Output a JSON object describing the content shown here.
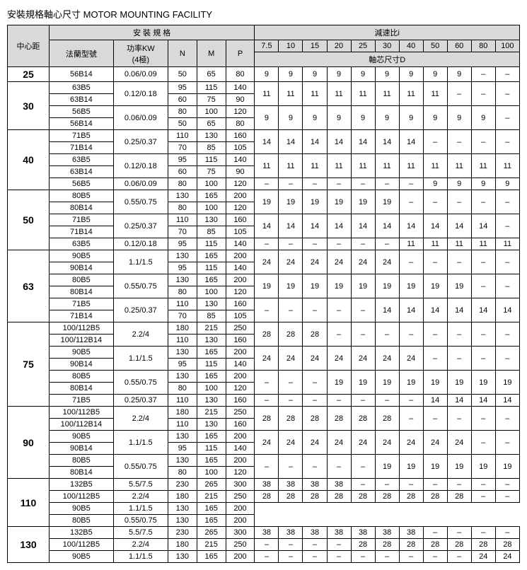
{
  "title": "安裝規格軸心尺寸 MOTOR MOUNTING FACILITY",
  "headers": {
    "center_dist": "中心距",
    "mount_spec": "安 裝 規 格",
    "ratio": "減速比i",
    "flange": "法蘭型號",
    "power": "功率KW\n(4極)",
    "N": "N",
    "M": "M",
    "P": "P",
    "shaft": "軸芯尺寸D",
    "ratios": [
      "7.5",
      "10",
      "15",
      "20",
      "25",
      "30",
      "40",
      "50",
      "60",
      "80",
      "100"
    ]
  },
  "groups": [
    {
      "cd": "25",
      "rows": [
        {
          "fl": "56B14",
          "kw": "0.06/0.09",
          "n": "50",
          "m": "65",
          "p": "80",
          "d": [
            "9",
            "9",
            "9",
            "9",
            "9",
            "9",
            "9",
            "9",
            "9",
            "–",
            "–"
          ]
        }
      ]
    },
    {
      "cd": "30",
      "rows": [
        {
          "fl": "63B5",
          "kw": "0.12/0.18",
          "kwspan": 2,
          "n": "95",
          "m": "115",
          "p": "140",
          "d": [
            "11",
            "11",
            "11",
            "11",
            "11",
            "11",
            "11",
            "11",
            "–",
            "–",
            "–"
          ],
          "dspan": 2
        },
        {
          "fl": "63B14",
          "n": "60",
          "m": "75",
          "p": "90"
        },
        {
          "fl": "56B5",
          "kw": "0.06/0.09",
          "kwspan": 2,
          "n": "80",
          "m": "100",
          "p": "120",
          "d": [
            "9",
            "9",
            "9",
            "9",
            "9",
            "9",
            "9",
            "9",
            "9",
            "9",
            "–"
          ],
          "dspan": 2
        },
        {
          "fl": "56B14",
          "n": "50",
          "m": "65",
          "p": "80"
        }
      ]
    },
    {
      "cd": "40",
      "rows": [
        {
          "fl": "71B5",
          "kw": "0.25/0.37",
          "kwspan": 2,
          "n": "110",
          "m": "130",
          "p": "160",
          "d": [
            "14",
            "14",
            "14",
            "14",
            "14",
            "14",
            "14",
            "–",
            "–",
            "–",
            "–"
          ],
          "dspan": 2
        },
        {
          "fl": "71B14",
          "n": "70",
          "m": "85",
          "p": "105"
        },
        {
          "fl": "63B5",
          "kw": "0.12/0.18",
          "kwspan": 2,
          "n": "95",
          "m": "115",
          "p": "140",
          "d": [
            "11",
            "11",
            "11",
            "11",
            "11",
            "11",
            "11",
            "11",
            "11",
            "11",
            "11"
          ],
          "dspan": 2
        },
        {
          "fl": "63B14",
          "n": "60",
          "m": "75",
          "p": "90"
        },
        {
          "fl": "56B5",
          "kw": "0.06/0.09",
          "n": "80",
          "m": "100",
          "p": "120",
          "d": [
            "–",
            "–",
            "–",
            "–",
            "–",
            "–",
            "–",
            "9",
            "9",
            "9",
            "9"
          ]
        }
      ]
    },
    {
      "cd": "50",
      "rows": [
        {
          "fl": "80B5",
          "kw": "0.55/0.75",
          "kwspan": 2,
          "n": "130",
          "m": "165",
          "p": "200",
          "d": [
            "19",
            "19",
            "19",
            "19",
            "19",
            "19",
            "–",
            "–",
            "–",
            "–",
            "–"
          ],
          "dspan": 2
        },
        {
          "fl": "80B14",
          "n": "80",
          "m": "100",
          "p": "120"
        },
        {
          "fl": "71B5",
          "kw": "0.25/0.37",
          "kwspan": 2,
          "n": "110",
          "m": "130",
          "p": "160",
          "d": [
            "14",
            "14",
            "14",
            "14",
            "14",
            "14",
            "14",
            "14",
            "14",
            "14",
            "–"
          ],
          "dspan": 2
        },
        {
          "fl": "71B14",
          "n": "70",
          "m": "85",
          "p": "105"
        },
        {
          "fl": "63B5",
          "kw": "0.12/0.18",
          "n": "95",
          "m": "115",
          "p": "140",
          "d": [
            "–",
            "–",
            "–",
            "–",
            "–",
            "–",
            "11",
            "11",
            "11",
            "11",
            "11"
          ]
        }
      ]
    },
    {
      "cd": "63",
      "rows": [
        {
          "fl": "90B5",
          "kw": "1.1/1.5",
          "kwspan": 2,
          "n": "130",
          "m": "165",
          "p": "200",
          "d": [
            "24",
            "24",
            "24",
            "24",
            "24",
            "24",
            "–",
            "–",
            "–",
            "–",
            "–"
          ],
          "dspan": 2
        },
        {
          "fl": "90B14",
          "n": "95",
          "m": "115",
          "p": "140"
        },
        {
          "fl": "80B5",
          "kw": "0.55/0.75",
          "kwspan": 2,
          "n": "130",
          "m": "165",
          "p": "200",
          "d": [
            "19",
            "19",
            "19",
            "19",
            "19",
            "19",
            "19",
            "19",
            "19",
            "–",
            "–"
          ],
          "dspan": 2
        },
        {
          "fl": "80B14",
          "n": "80",
          "m": "100",
          "p": "120"
        },
        {
          "fl": "71B5",
          "kw": "0.25/0.37",
          "kwspan": 2,
          "n": "110",
          "m": "130",
          "p": "160",
          "d": [
            "–",
            "–",
            "–",
            "–",
            "–",
            "14",
            "14",
            "14",
            "14",
            "14",
            "14"
          ],
          "dspan": 2
        },
        {
          "fl": "71B14",
          "n": "70",
          "m": "85",
          "p": "105"
        }
      ]
    },
    {
      "cd": "75",
      "rows": [
        {
          "fl": "100/112B5",
          "kw": "2.2/4",
          "kwspan": 2,
          "n": "180",
          "m": "215",
          "p": "250",
          "d": [
            "28",
            "28",
            "28",
            "–",
            "–",
            "–",
            "–",
            "–",
            "–",
            "–",
            "–"
          ],
          "dspan": 2
        },
        {
          "fl": "100/112B14",
          "n": "110",
          "m": "130",
          "p": "160"
        },
        {
          "fl": "90B5",
          "kw": "1.1/1.5",
          "kwspan": 2,
          "n": "130",
          "m": "165",
          "p": "200",
          "d": [
            "24",
            "24",
            "24",
            "24",
            "24",
            "24",
            "24",
            "–",
            "–",
            "–",
            "–"
          ],
          "dspan": 2
        },
        {
          "fl": "90B14",
          "n": "95",
          "m": "115",
          "p": "140"
        },
        {
          "fl": "80B5",
          "kw": "0.55/0.75",
          "kwspan": 2,
          "n": "130",
          "m": "165",
          "p": "200",
          "d": [
            "–",
            "–",
            "–",
            "19",
            "19",
            "19",
            "19",
            "19",
            "19",
            "19",
            "19"
          ],
          "dspan": 2
        },
        {
          "fl": "80B14",
          "n": "80",
          "m": "100",
          "p": "120"
        },
        {
          "fl": "71B5",
          "kw": "0.25/0.37",
          "n": "110",
          "m": "130",
          "p": "160",
          "d": [
            "–",
            "–",
            "–",
            "–",
            "–",
            "–",
            "–",
            "14",
            "14",
            "14",
            "14"
          ]
        }
      ]
    },
    {
      "cd": "90",
      "rows": [
        {
          "fl": "100/112B5",
          "kw": "2.2/4",
          "kwspan": 2,
          "n": "180",
          "m": "215",
          "p": "250",
          "d": [
            "28",
            "28",
            "28",
            "28",
            "28",
            "28",
            "–",
            "–",
            "–",
            "–",
            "–"
          ],
          "dspan": 2
        },
        {
          "fl": "100/112B14",
          "n": "110",
          "m": "130",
          "p": "160"
        },
        {
          "fl": "90B5",
          "kw": "1.1/1.5",
          "kwspan": 2,
          "n": "130",
          "m": "165",
          "p": "200",
          "d": [
            "24",
            "24",
            "24",
            "24",
            "24",
            "24",
            "24",
            "24",
            "24",
            "–",
            "–"
          ],
          "dspan": 2
        },
        {
          "fl": "90B14",
          "n": "95",
          "m": "115",
          "p": "140"
        },
        {
          "fl": "80B5",
          "kw": "0.55/0.75",
          "kwspan": 2,
          "n": "130",
          "m": "165",
          "p": "200",
          "d": [
            "–",
            "–",
            "–",
            "–",
            "–",
            "19",
            "19",
            "19",
            "19",
            "19",
            "19"
          ],
          "dspan": 2
        },
        {
          "fl": "80B14",
          "n": "80",
          "m": "100",
          "p": "120"
        }
      ]
    },
    {
      "cd": "110",
      "rows": [
        {
          "fl": "132B5",
          "kw": "5.5/7.5",
          "n": "230",
          "m": "265",
          "p": "300",
          "d": [
            "38",
            "38",
            "38",
            "38",
            "–",
            "–",
            "–",
            "–",
            "–",
            "–",
            "–"
          ]
        },
        {
          "fl": "100/112B5",
          "kw": "2.2/4",
          "n": "180",
          "m": "215",
          "p": "250",
          "d": [
            "28",
            "28",
            "28",
            "28",
            "28",
            "28",
            "28",
            "28",
            "28",
            "–",
            "–"
          ]
        },
        {
          "fl": "90B5",
          "kw": "1.1/1.5",
          "n": "130",
          "m": "165",
          "p": "200"
        },
        {
          "fl": "80B5",
          "kw": "0.55/0.75",
          "n": "130",
          "m": "165",
          "p": "200"
        }
      ]
    },
    {
      "cd": "130",
      "rows": [
        {
          "fl": "132B5",
          "kw": "5.5/7.5",
          "n": "230",
          "m": "265",
          "p": "300",
          "d": [
            "38",
            "38",
            "38",
            "38",
            "38",
            "38",
            "38",
            "–",
            "–",
            "–",
            "–"
          ]
        },
        {
          "fl": "100/112B5",
          "kw": "2.2/4",
          "n": "180",
          "m": "215",
          "p": "250",
          "d": [
            "–",
            "–",
            "–",
            "–",
            "28",
            "28",
            "28",
            "28",
            "28",
            "28",
            "28"
          ]
        },
        {
          "fl": "90B5",
          "kw": "1.1/1.5",
          "n": "130",
          "m": "165",
          "p": "200",
          "d": [
            "–",
            "–",
            "–",
            "–",
            "–",
            "–",
            "–",
            "–",
            "–",
            "24",
            "24"
          ]
        }
      ]
    }
  ]
}
